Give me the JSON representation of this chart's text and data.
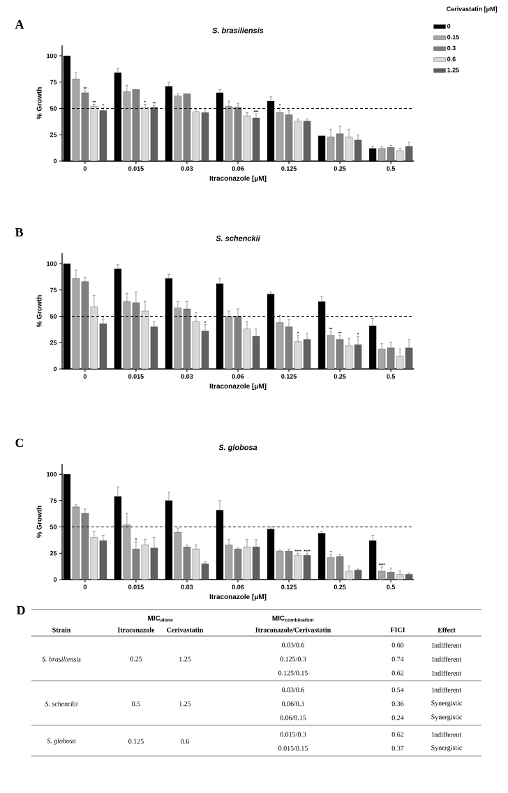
{
  "chart_data": [
    {
      "type": "bar",
      "title": "S. brasiliensis",
      "xlabel": "Itraconazole [μM]",
      "ylabel": "% Growth",
      "legend_title": "Cerivastatin [μM]",
      "legend": "top right",
      "annotations": [
        "A"
      ],
      "categories": [
        "0",
        "0.015",
        "0.03",
        "0.06",
        "0.125",
        "0.25",
        "0.5"
      ],
      "ylim": [
        0,
        110
      ],
      "yticks": [
        0,
        25,
        50,
        75,
        100
      ],
      "ref_lines": [
        {
          "axis": "y",
          "value": 50,
          "line_style": "dashed"
        }
      ],
      "series": [
        {
          "name": "0",
          "color": "#000000",
          "values": [
            100,
            84,
            71,
            65,
            57,
            24,
            12
          ],
          "errors": [
            null,
            [
              84,
              88
            ],
            [
              71,
              75
            ],
            [
              65,
              68
            ],
            [
              57,
              61
            ],
            null,
            [
              12,
              14
            ]
          ]
        },
        {
          "name": "0.15",
          "color": "#a6a6a6",
          "values": [
            78,
            66,
            62,
            52,
            46,
            23,
            12
          ],
          "errors": [
            [
              78,
              84
            ],
            [
              66,
              72
            ],
            [
              62,
              64
            ],
            [
              52,
              57
            ],
            [
              46,
              51
            ],
            [
              23,
              30
            ],
            [
              12,
              14
            ]
          ],
          "value_labels": [
            null,
            null,
            null,
            null,
            "*",
            null,
            null
          ]
        },
        {
          "name": "0.3",
          "color": "#808080",
          "values": [
            65,
            68,
            64,
            51,
            44,
            26,
            13
          ],
          "errors": [
            [
              65,
              67
            ],
            null,
            null,
            [
              51,
              55
            ],
            [
              44,
              48
            ],
            [
              26,
              33
            ],
            [
              13,
              15
            ]
          ],
          "value_labels": [
            "**",
            null,
            null,
            null,
            null,
            null,
            null
          ]
        },
        {
          "name": "0.6",
          "color": "#d9d9d9",
          "values": [
            52,
            51,
            47,
            43,
            38,
            23,
            10
          ],
          "errors": [
            [
              52,
              54
            ],
            [
              51,
              54
            ],
            [
              47,
              49
            ],
            [
              43,
              46
            ],
            [
              38,
              40
            ],
            [
              23,
              30
            ],
            [
              10,
              12
            ]
          ],
          "value_labels": [
            "**",
            "*",
            null,
            null,
            null,
            null,
            null
          ]
        },
        {
          "name": "1.25",
          "color": "#606060",
          "values": [
            48,
            51,
            46,
            41,
            38,
            20,
            14
          ],
          "errors": [
            [
              48,
              51
            ],
            [
              51,
              53
            ],
            [
              46,
              50
            ],
            [
              41,
              45
            ],
            [
              38,
              40
            ],
            [
              20,
              25
            ],
            [
              14,
              18
            ]
          ],
          "value_labels": [
            "*",
            "**",
            null,
            "***",
            null,
            null,
            null
          ]
        }
      ]
    },
    {
      "type": "bar",
      "title": "S. schenckii",
      "xlabel": "Itraconazole [μM]",
      "ylabel": "% Growth",
      "annotations": [
        "B"
      ],
      "categories": [
        "0",
        "0.015",
        "0.03",
        "0.06",
        "0.125",
        "0.25",
        "0.5"
      ],
      "ylim": [
        0,
        110
      ],
      "yticks": [
        0,
        25,
        50,
        75,
        100
      ],
      "ref_lines": [
        {
          "axis": "y",
          "value": 50,
          "line_style": "dashed"
        }
      ],
      "series": [
        {
          "color": "#000000",
          "values": [
            100,
            95,
            86,
            81,
            71,
            64,
            41
          ],
          "errors": [
            null,
            [
              95,
              99
            ],
            [
              86,
              90
            ],
            [
              81,
              86
            ],
            [
              71,
              73
            ],
            [
              64,
              69
            ],
            [
              41,
              48
            ]
          ]
        },
        {
          "color": "#a6a6a6",
          "values": [
            86,
            64,
            58,
            50,
            44,
            32,
            19
          ],
          "errors": [
            [
              86,
              94
            ],
            [
              64,
              72
            ],
            [
              58,
              64
            ],
            [
              50,
              55
            ],
            [
              44,
              51
            ],
            [
              32,
              36
            ],
            [
              19,
              24
            ]
          ],
          "value_labels": [
            null,
            null,
            null,
            null,
            null,
            "**",
            null
          ]
        },
        {
          "color": "#808080",
          "values": [
            83,
            63,
            57,
            50,
            40,
            28,
            20
          ],
          "errors": [
            [
              83,
              87
            ],
            [
              63,
              73
            ],
            [
              57,
              64
            ],
            [
              50,
              57
            ],
            [
              40,
              47
            ],
            [
              28,
              32
            ],
            [
              20,
              25
            ]
          ],
          "value_labels": [
            null,
            null,
            null,
            null,
            null,
            "**",
            null
          ]
        },
        {
          "color": "#d9d9d9",
          "values": [
            59,
            55,
            45,
            38,
            26,
            22,
            12
          ],
          "errors": [
            [
              59,
              70
            ],
            [
              55,
              64
            ],
            [
              45,
              54
            ],
            [
              38,
              45
            ],
            [
              26,
              32
            ],
            [
              22,
              29
            ],
            [
              12,
              19
            ]
          ],
          "value_labels": [
            null,
            null,
            null,
            null,
            "*",
            null,
            null
          ]
        },
        {
          "color": "#606060",
          "values": [
            43,
            40,
            36,
            31,
            28,
            23,
            20
          ],
          "errors": [
            [
              43,
              47
            ],
            [
              40,
              45
            ],
            [
              36,
              42
            ],
            [
              31,
              38
            ],
            [
              28,
              34
            ],
            [
              23,
              31
            ],
            [
              20,
              28
            ]
          ],
          "value_labels": [
            "*",
            null,
            "*",
            null,
            null,
            "*",
            null
          ]
        }
      ]
    },
    {
      "type": "bar",
      "title": "S. globosa",
      "xlabel": "Itraconazole [μM]",
      "ylabel": "% Growth",
      "annotations": [
        "C"
      ],
      "categories": [
        "0",
        "0.015",
        "0.03",
        "0.06",
        "0.125",
        "0.25",
        "0.5"
      ],
      "ylim": [
        0,
        110
      ],
      "yticks": [
        0,
        25,
        50,
        75,
        100
      ],
      "ref_lines": [
        {
          "axis": "y",
          "value": 50,
          "line_style": "dashed"
        }
      ],
      "series": [
        {
          "color": "#000000",
          "values": [
            100,
            79,
            75,
            66,
            48,
            44,
            37
          ],
          "errors": [
            null,
            [
              79,
              88
            ],
            [
              75,
              83
            ],
            [
              66,
              75
            ],
            [
              48,
              50
            ],
            [
              44,
              46
            ],
            [
              37,
              42
            ]
          ]
        },
        {
          "color": "#a6a6a6",
          "values": [
            69,
            52,
            45,
            33,
            27,
            21,
            8
          ],
          "errors": [
            [
              69,
              71
            ],
            [
              52,
              63
            ],
            [
              45,
              49
            ],
            [
              33,
              38
            ],
            [
              27,
              28
            ],
            [
              21,
              24
            ],
            [
              8,
              12
            ]
          ],
          "value_labels": [
            null,
            null,
            null,
            null,
            null,
            "*",
            "****"
          ]
        },
        {
          "color": "#808080",
          "values": [
            63,
            29,
            31,
            29,
            27,
            22,
            7
          ],
          "errors": [
            [
              63,
              67
            ],
            [
              29,
              36
            ],
            [
              31,
              33
            ],
            [
              29,
              30
            ],
            [
              27,
              29
            ],
            [
              22,
              24
            ],
            [
              7,
              11
            ]
          ],
          "value_labels": [
            null,
            "*",
            null,
            null,
            null,
            null,
            null
          ]
        },
        {
          "color": "#d9d9d9",
          "values": [
            40,
            33,
            29,
            31,
            23,
            8,
            5
          ],
          "errors": [
            [
              40,
              46
            ],
            [
              33,
              38
            ],
            [
              29,
              33
            ],
            [
              31,
              38
            ],
            [
              23,
              25
            ],
            [
              8,
              13
            ],
            [
              5,
              8
            ]
          ],
          "value_labels": [
            null,
            null,
            null,
            null,
            "****",
            null,
            null
          ]
        },
        {
          "color": "#606060",
          "values": [
            37,
            30,
            15,
            31,
            23,
            9,
            5
          ],
          "errors": [
            [
              37,
              42
            ],
            [
              30,
              40
            ],
            [
              15,
              17
            ],
            [
              31,
              38
            ],
            [
              23,
              25
            ],
            [
              9,
              10
            ],
            [
              5,
              6
            ]
          ],
          "value_labels": [
            null,
            null,
            null,
            null,
            "****",
            null,
            null
          ]
        }
      ]
    },
    {
      "type": "other",
      "annotations": [
        "D",
        "\\mathbf{MIC}_{\\mathbf{alone}}",
        "\\mathbf{MIC}_{\\mathbf{combination}}"
      ],
      "categories": [
        "Strain",
        "Itraconazole",
        "Cerivastatin",
        "Itraconazole/Cerivastatin",
        "FICI",
        "Effect"
      ],
      "cell_labels": [
        [
          "S. brasiliensis",
          "0.25",
          "1.25",
          "0.03/0.6",
          "0.60",
          "Indifferent"
        ],
        [
          null,
          null,
          null,
          "0.125/0.3",
          "0.74",
          "Indifferent"
        ],
        [
          null,
          null,
          null,
          "0.125/0.15",
          "0.62",
          "Indifferent"
        ],
        [
          "S. schenckii",
          "0.5",
          "1.25",
          "0.03/0.6",
          "0.54",
          "Indifferent"
        ],
        [
          null,
          null,
          null,
          "0.06/0.3",
          "0.36",
          "Synergistic"
        ],
        [
          null,
          null,
          null,
          "0.06/0.15",
          "0.24",
          "Synergistic"
        ],
        [
          "S. globosa",
          "0.125",
          "0.6",
          "0.015/0.3",
          "0.62",
          "Indifferent"
        ],
        [
          null,
          null,
          null,
          "0.015/0.15",
          "0.37",
          "Synergistic"
        ]
      ]
    }
  ]
}
